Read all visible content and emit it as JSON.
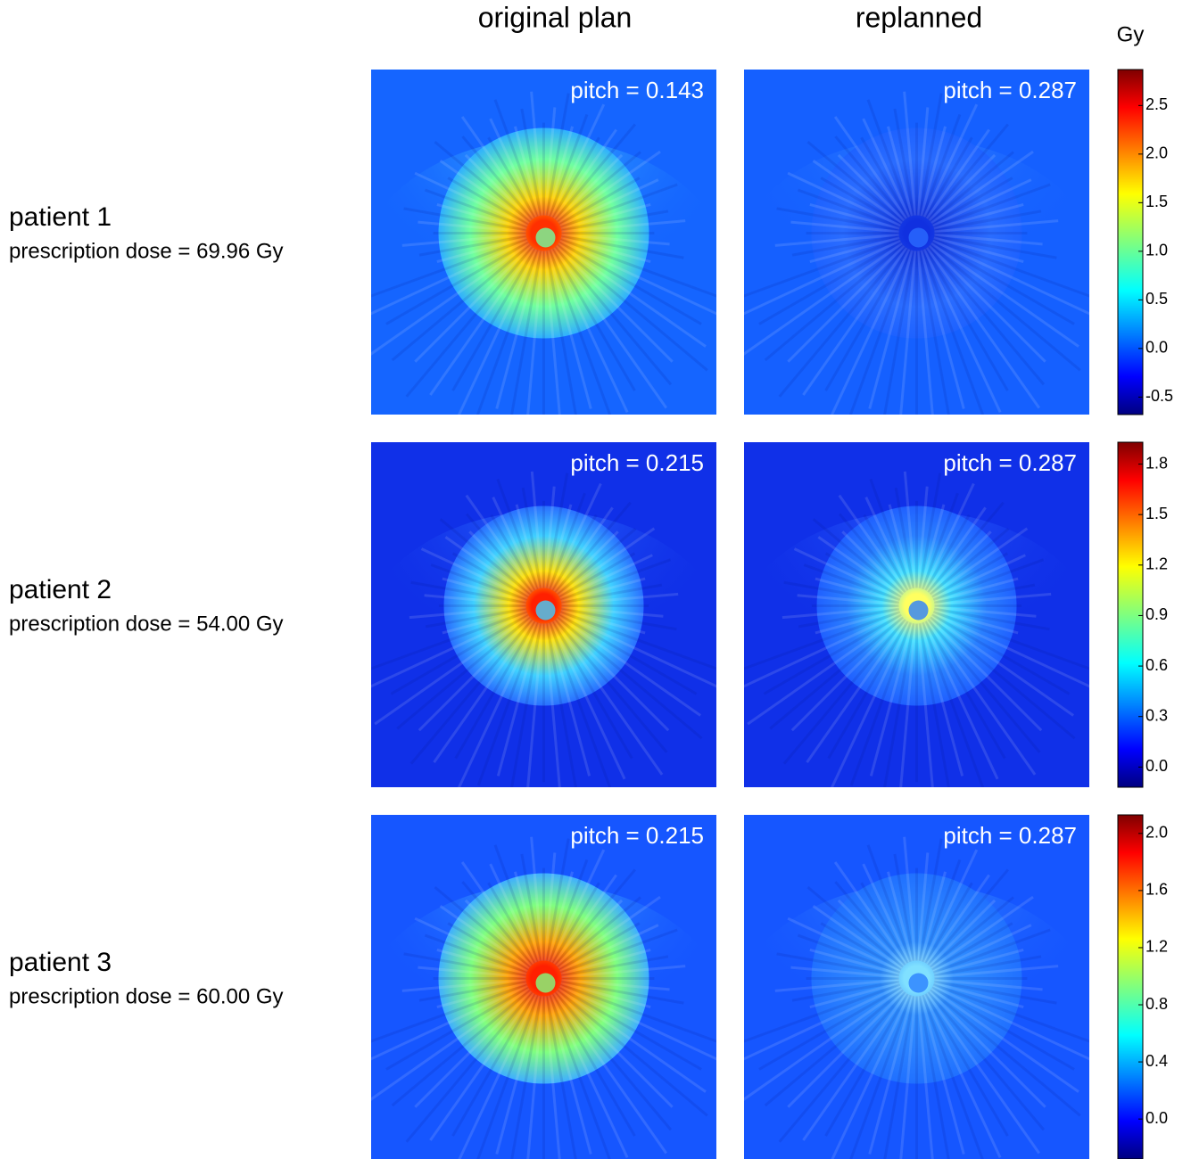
{
  "columns": [
    "original plan",
    "replanned"
  ],
  "unit": "Gy",
  "rows": [
    {
      "patient": "patient 1",
      "prescription": "prescription dose = 69.96 Gy",
      "pitches": [
        "pitch = 0.143",
        "pitch = 0.287"
      ],
      "colorbar": {
        "lim": [
          -0.68,
          2.87
        ],
        "ticks": [
          2.5,
          {
            "value": 2,
            "label": "2.0"
          },
          1.5,
          {
            "value": 1,
            "label": "1.0"
          },
          0.5,
          {
            "value": 0,
            "label": "0.0"
          },
          -0.5
        ]
      }
    },
    {
      "patient": "patient 2",
      "prescription": "prescription dose = 54.00 Gy",
      "pitches": [
        "pitch = 0.215",
        "pitch = 0.287"
      ],
      "colorbar": {
        "lim": [
          -0.12,
          1.93
        ],
        "ticks": [
          1.8,
          1.5,
          1.2,
          0.9,
          0.6,
          0.3,
          {
            "value": 0,
            "label": "0.0"
          }
        ]
      }
    },
    {
      "patient": "patient 3",
      "prescription": "prescription dose = 60.00 Gy",
      "pitches": [
        "pitch = 0.215",
        "pitch = 0.287"
      ],
      "colorbar": {
        "lim": [
          -0.28,
          2.13
        ],
        "ticks": [
          {
            "value": 2,
            "label": "2.0"
          },
          1.6,
          1.2,
          0.8,
          0.4,
          {
            "value": 0,
            "label": "0.0"
          }
        ]
      }
    }
  ]
}
